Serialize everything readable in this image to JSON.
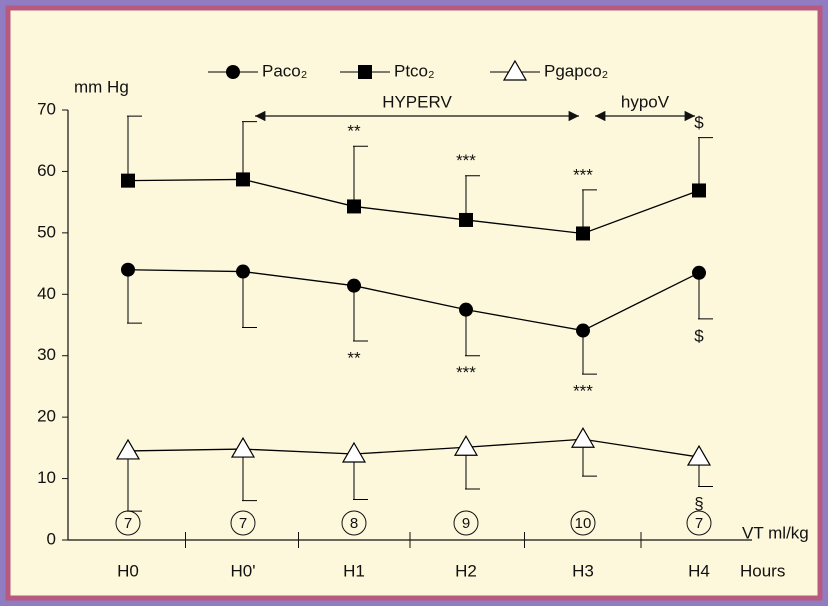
{
  "chart_data": {
    "type": "line",
    "y_label": "mm Hg",
    "x_label": "Hours",
    "n_label": "VT ml/kg",
    "categories": [
      "H0",
      "H0'",
      "H1",
      "H2",
      "H3",
      "H4"
    ],
    "n": [
      7,
      7,
      8,
      9,
      10,
      7
    ],
    "ylim": [
      0,
      70
    ],
    "yticks": [
      0,
      10,
      20,
      30,
      40,
      50,
      60,
      70
    ],
    "series": [
      {
        "name": "Paco₂",
        "color": "#000000",
        "marker": "circle",
        "error_dir": "down",
        "values": [
          44,
          43.7,
          41.4,
          37.5,
          34.1,
          43.5
        ],
        "errors": [
          8.7,
          9.1,
          9.0,
          7.5,
          7.1,
          7.5
        ],
        "labels": [
          null,
          null,
          "**",
          "***",
          "***",
          "$"
        ]
      },
      {
        "name": "Ptco₂",
        "color": "#000000",
        "marker": "square",
        "error_dir": "up",
        "values": [
          58.5,
          58.7,
          54.3,
          52.1,
          49.9,
          56.9
        ],
        "errors": [
          10.5,
          9.4,
          9.8,
          7.2,
          7.1,
          8.6
        ],
        "labels": [
          null,
          null,
          "**",
          "***",
          "***",
          "$"
        ]
      },
      {
        "name": "Pgapco₂",
        "color": "#000000",
        "marker": "triangle",
        "error_dir": "down",
        "values": [
          14.5,
          14.8,
          14,
          15.1,
          16.4,
          13.5
        ],
        "errors": [
          9.8,
          8.4,
          7.4,
          6.8,
          6.0,
          4.8
        ],
        "labels": [
          null,
          null,
          null,
          null,
          null,
          "§"
        ]
      }
    ],
    "annotations": [
      {
        "text": "HYPERV",
        "from": 1,
        "to": 4
      },
      {
        "text": "hypoV",
        "from": 4,
        "to": 5
      }
    ]
  }
}
